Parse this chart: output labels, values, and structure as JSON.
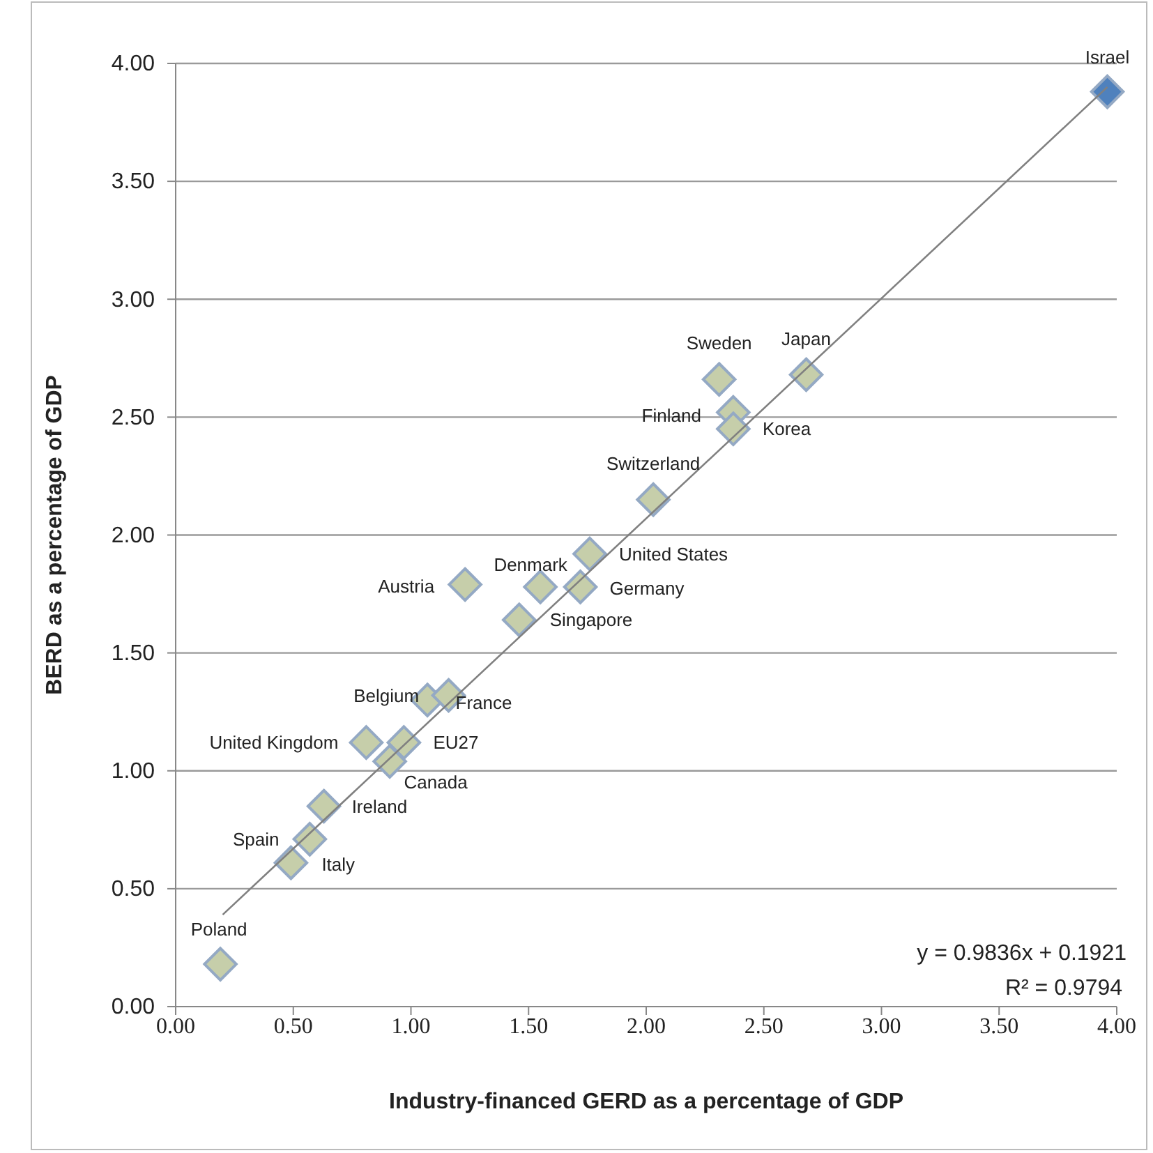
{
  "chart_data": {
    "type": "scatter",
    "xlabel": "Industry-financed GERD as a percentage of GDP",
    "ylabel": "BERD as a percentage of GDP",
    "xlim": [
      0,
      4
    ],
    "xticks": [
      {
        "value": 0,
        "label": "0.00"
      },
      {
        "value": 0.5,
        "label": "0.50"
      },
      {
        "value": 1,
        "label": "1.00"
      },
      {
        "value": 1.5,
        "label": "1.50"
      },
      {
        "value": 2,
        "label": "2.00"
      },
      {
        "value": 2.5,
        "label": "2.50"
      },
      {
        "value": 3,
        "label": "3.00"
      },
      {
        "value": 3.5,
        "label": "3.50"
      },
      {
        "value": 4,
        "label": "4.00"
      }
    ],
    "ylim": [
      0,
      4
    ],
    "yticks": [
      {
        "value": 0,
        "label": "0.00"
      },
      {
        "value": 0.5,
        "label": "0.50"
      },
      {
        "value": 1,
        "label": "1.00"
      },
      {
        "value": 1.5,
        "label": "1.50"
      },
      {
        "value": 2,
        "label": "2.00"
      },
      {
        "value": 2.5,
        "label": "2.50"
      },
      {
        "value": 3,
        "label": "3.00"
      },
      {
        "value": 3.5,
        "label": "3.50"
      },
      {
        "value": 4,
        "label": "4.00"
      }
    ],
    "grid": "y",
    "series": [
      {
        "marker": "diamond",
        "x": [
          3.96,
          2.31,
          2.68,
          2.37,
          2.37,
          2.03,
          1.76,
          1.55,
          1.72,
          1.23,
          1.46,
          1.07,
          1.16,
          0.81,
          0.97,
          0.91,
          0.63,
          0.57,
          0.49,
          0.19
        ],
        "values": [
          3.88,
          2.66,
          2.68,
          2.52,
          2.45,
          2.15,
          1.92,
          1.78,
          1.78,
          1.79,
          1.64,
          1.3,
          1.32,
          1.12,
          1.12,
          1.04,
          0.85,
          0.71,
          0.61,
          0.18
        ],
        "colors": [
          "#4f81bd",
          "#c6ceaa",
          "#c6ceaa",
          "#c6ceaa",
          "#c6ceaa",
          "#c6ceaa",
          "#c6ceaa",
          "#c6ceaa",
          "#c6ceaa",
          "#c6ceaa",
          "#c6ceaa",
          "#c6ceaa",
          "#c6ceaa",
          "#c6ceaa",
          "#c6ceaa",
          "#c6ceaa",
          "#c6ceaa",
          "#c6ceaa",
          "#c6ceaa",
          "#c6ceaa"
        ]
      },
      {
        "type": "line",
        "x": [
          0.2,
          3.96
        ],
        "values": [
          0.39,
          3.9
        ],
        "color": "#808080"
      }
    ],
    "annotations": [
      {
        "text": "Israel",
        "x": 3.96,
        "y": 3.88
      },
      {
        "text": "Sweden",
        "x": 2.31,
        "y": 2.66
      },
      {
        "text": "Japan",
        "x": 2.68,
        "y": 2.68
      },
      {
        "text": "Finland",
        "x": 2.37,
        "y": 2.52
      },
      {
        "text": "Korea",
        "x": 2.37,
        "y": 2.45
      },
      {
        "text": "Switzerland",
        "x": 2.03,
        "y": 2.15
      },
      {
        "text": "United States",
        "x": 1.76,
        "y": 1.92
      },
      {
        "text": "Denmark",
        "x": 1.55,
        "y": 1.78
      },
      {
        "text": "Germany",
        "x": 1.72,
        "y": 1.78
      },
      {
        "text": "Austria",
        "x": 1.23,
        "y": 1.79
      },
      {
        "text": "Singapore",
        "x": 1.46,
        "y": 1.64
      },
      {
        "text": "Belgium",
        "x": 1.07,
        "y": 1.3
      },
      {
        "text": "France",
        "x": 1.16,
        "y": 1.32
      },
      {
        "text": "United Kingdom",
        "x": 0.81,
        "y": 1.12
      },
      {
        "text": "EU27",
        "x": 0.97,
        "y": 1.12
      },
      {
        "text": "Canada",
        "x": 0.91,
        "y": 1.04
      },
      {
        "text": "Ireland",
        "x": 0.63,
        "y": 0.85
      },
      {
        "text": "Spain",
        "x": 0.57,
        "y": 0.71
      },
      {
        "text": "Italy",
        "x": 0.49,
        "y": 0.61
      },
      {
        "text": "Poland",
        "x": 0.19,
        "y": 0.18
      },
      "y = 0.9836x + 0.1921",
      "R² = 0.9794"
    ]
  }
}
